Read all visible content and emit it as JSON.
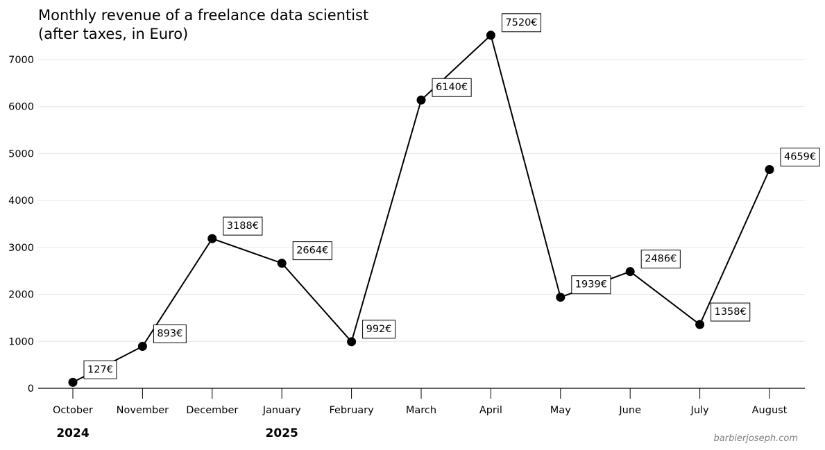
{
  "chart_data": {
    "type": "line",
    "title": [
      "Monthly revenue of a freelance data scientist",
      "(after taxes, in Euro)"
    ],
    "categories": [
      "October",
      "November",
      "December",
      "January",
      "February",
      "March",
      "April",
      "May",
      "June",
      "July",
      "August"
    ],
    "values": [
      127,
      893,
      3188,
      2664,
      992,
      6140,
      7520,
      1939,
      2486,
      1358,
      4659
    ],
    "point_labels": [
      "127€",
      "893€",
      "3188€",
      "2664€",
      "992€",
      "6140€",
      "7520€",
      "1939€",
      "2486€",
      "1358€",
      "4659€"
    ],
    "year_labels": [
      {
        "year": "2024",
        "category_index": 0
      },
      {
        "year": "2025",
        "category_index": 3
      }
    ],
    "yticks": [
      0,
      1000,
      2000,
      3000,
      4000,
      5000,
      6000,
      7000
    ],
    "ylim": [
      0,
      7700
    ],
    "xlabel": "",
    "ylabel": "",
    "grid": "horizontal",
    "legend": "none",
    "line_color": "#000000",
    "marker_color": "#000000",
    "grid_color": "#e6e6e6",
    "watermark_color": "#808080"
  },
  "watermark": "barbierjoseph.com"
}
